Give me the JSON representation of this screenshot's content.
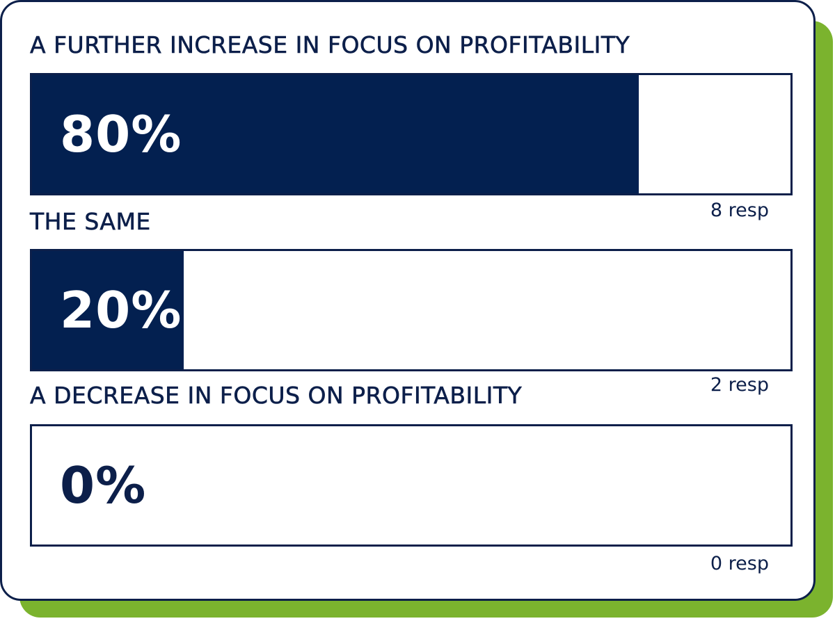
{
  "colors": {
    "bar_fill": "#032050",
    "text": "#0c1f4a",
    "accent_green": "#7bb32e",
    "pct_on_fill": "#ffffff"
  },
  "chart_data": {
    "type": "bar",
    "orientation": "horizontal",
    "unit": "%",
    "xlim": [
      0,
      100
    ],
    "grid": false,
    "categories": [
      "A FURTHER INCREASE IN FOCUS ON PROFITABILITY",
      "THE SAME",
      "A DECREASE IN FOCUS ON PROFITABILITY"
    ],
    "values": [
      80,
      20,
      0
    ],
    "value_labels": [
      "80%",
      "20%",
      "0%"
    ],
    "response_labels": [
      "8 resp",
      "2 resp",
      "0 resp"
    ],
    "responses": [
      8,
      2,
      0
    ]
  }
}
